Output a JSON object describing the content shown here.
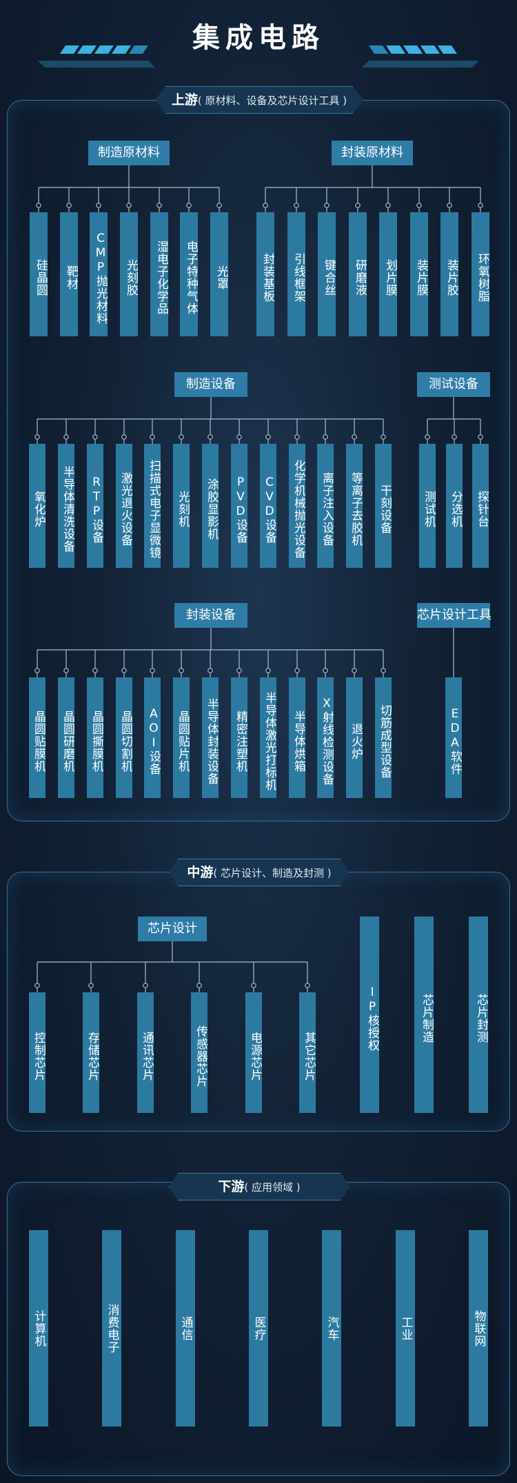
{
  "title": "集成电路",
  "upstream": {
    "tag_main": "上游",
    "tag_sub": "( 原材料、设备及芯片设计工具 )",
    "groups": {
      "manufacturing_materials": {
        "label": "制造原材料",
        "items": [
          "硅晶圆",
          "靶材",
          "CMP抛光材料",
          "光刻胶",
          "湿电子化学品",
          "电子特种气体",
          "光罩"
        ]
      },
      "packaging_materials": {
        "label": "封装原材料",
        "items": [
          "封装基板",
          "引线框架",
          "键合丝",
          "研磨液",
          "划片膜",
          "装片膜",
          "装片胶",
          "环氧树脂"
        ]
      },
      "manufacturing_equipment": {
        "label": "制造设备",
        "items": [
          "氧化炉",
          "半导体清洗设备",
          "RTP设备",
          "激光退火设备",
          "扫描式电子显微镜",
          "光刻机",
          "涂胶显影机",
          "PVD设备",
          "CVD设备",
          "化学机械抛光设备",
          "离子注入设备",
          "等离子去胶机",
          "干刻设备"
        ]
      },
      "test_equipment": {
        "label": "测试设备",
        "items": [
          "测试机",
          "分选机",
          "探针台"
        ]
      },
      "packaging_equipment": {
        "label": "封装设备",
        "items": [
          "晶圆贴膜机",
          "晶圆研磨机",
          "晶圆撕膜机",
          "晶圆切割机",
          "AOI设备",
          "晶圆贴片机",
          "半导体封装设备",
          "精密注塑机",
          "半导体激光打标机",
          "半导体烘箱",
          "X射线检测设备",
          "退火炉",
          "切筋成型设备"
        ]
      },
      "design_tools": {
        "label": "芯片设计工具",
        "items": [
          "EDA软件"
        ]
      }
    }
  },
  "midstream": {
    "tag_main": "中游",
    "tag_sub": "( 芯片设计、制造及封测 )",
    "chip_design": {
      "label": "芯片设计",
      "items": [
        "控制芯片",
        "存储芯片",
        "通讯芯片",
        "传感器芯片",
        "电源芯片",
        "其它芯片"
      ]
    },
    "others": [
      "IP核授权",
      "芯片制造",
      "芯片封测"
    ]
  },
  "downstream": {
    "tag_main": "下游",
    "tag_sub": "( 应用领域 )",
    "items": [
      "计算机",
      "消费电子",
      "通信",
      "医疗",
      "汽车",
      "工业",
      "物联网"
    ]
  },
  "colors": {
    "background": "#122236",
    "column": "#2d7aa1",
    "frame": "#3a6d93",
    "line": "#a9bfd0"
  }
}
